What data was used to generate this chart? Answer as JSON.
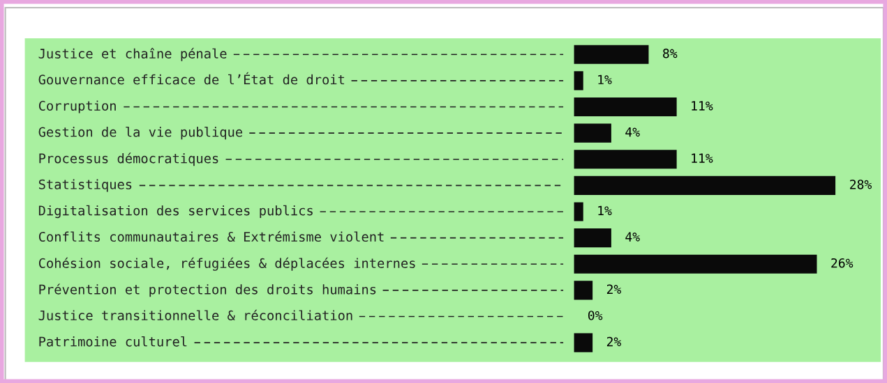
{
  "chart_data": {
    "type": "bar",
    "orientation": "horizontal",
    "categories": [
      "Justice et chaîne pénale",
      "Gouvernance efficace de l’État de droit",
      "Corruption",
      "Gestion de la vie publique",
      "Processus démocratiques",
      "Statistiques",
      "Digitalisation des services publics",
      "Conflits communautaires & Extrémisme violent",
      "Cohésion sociale, réfugiées & déplacées internes",
      "Prévention et protection des droits humains",
      "Justice transitionnelle & réconciliation",
      "Patrimoine culturel"
    ],
    "values": [
      8,
      1,
      11,
      4,
      11,
      28,
      1,
      4,
      26,
      2,
      0,
      2
    ],
    "value_labels": [
      "8%",
      "1%",
      "11%",
      "4%",
      "11%",
      "28%",
      "1%",
      "4%",
      "26%",
      "2%",
      "0%",
      "2%"
    ],
    "color": "#0a0a0a"
  }
}
